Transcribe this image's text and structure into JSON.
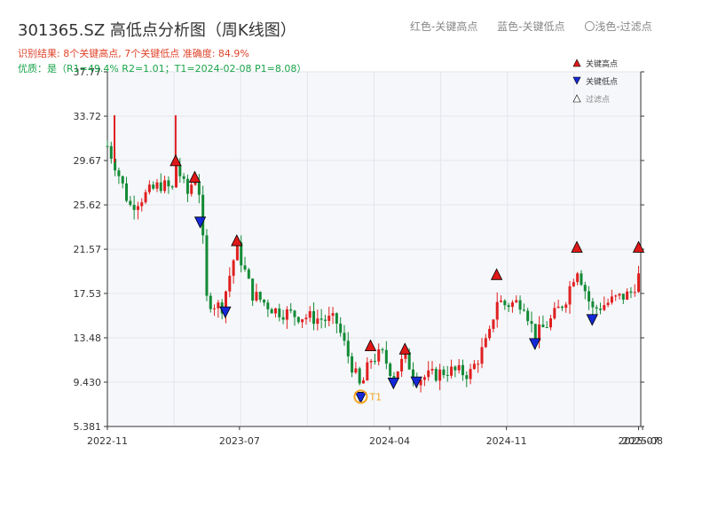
{
  "header": {
    "title": "301365.SZ 高低点分析图（周K线图）",
    "legend_red": "红色-关键高点",
    "legend_blue": "蓝色-关键低点",
    "legend_light": "〇浅色-过滤点",
    "result_line": "识别结果: 8个关键高点, 7个关键低点   准确度: 84.9%",
    "quality_line": "优质：是（R1=49.4%  R2=1.01；T1=2024-02-08 P1=8.08）"
  },
  "colors": {
    "up": "#e02020",
    "down": "#138a36",
    "high_marker": "#e01818",
    "low_marker": "#1428d8",
    "t1_marker": "#f5a623",
    "plot_bg": "#f5f7fa",
    "grid": "#e3e6ec"
  },
  "chart_data": {
    "type": "candlestick",
    "title": "301365.SZ 高低点分析图（周K线图）",
    "y_ticks": [
      "37.77",
      "33.72",
      "29.67",
      "25.62",
      "21.57",
      "17.53",
      "13.48",
      "9.430",
      "5.381"
    ],
    "ylim": [
      5.381,
      37.77
    ],
    "x_ticks": [
      {
        "label": "2022-11",
        "date": "2022-11-01"
      },
      {
        "label": "2023-07",
        "date": "2023-07-01"
      },
      {
        "label": "2024-04",
        "date": "2024-04-01"
      },
      {
        "label": "2024-11",
        "date": "2024-11-01"
      },
      {
        "label": "2025-07",
        "date": "2025-07-01"
      },
      {
        "label": "2025-08",
        "date": "2025-08-01"
      }
    ],
    "xlim": [
      "2022-11-01",
      "2025-07-05"
    ],
    "series_legend": [
      "关键高点",
      "关键低点",
      "过滤点"
    ],
    "price_path": [
      {
        "date": "2022-11-01",
        "price": 31.0
      },
      {
        "date": "2022-11-14",
        "price": 29.5
      },
      {
        "date": "2022-12-12",
        "price": 25.5
      },
      {
        "date": "2023-01-09",
        "price": 26.5
      },
      {
        "date": "2023-02-06",
        "price": 27.5
      },
      {
        "date": "2023-02-28",
        "price": 27.0
      },
      {
        "date": "2023-03-06",
        "price": 29.5
      },
      {
        "date": "2023-03-27",
        "price": 26.5
      },
      {
        "date": "2023-04-10",
        "price": 28.3
      },
      {
        "date": "2023-04-20",
        "price": 26.5
      },
      {
        "date": "2023-05-01",
        "price": 17.0
      },
      {
        "date": "2023-05-29",
        "price": 16.2
      },
      {
        "date": "2023-06-26",
        "price": 21.8
      },
      {
        "date": "2023-07-24",
        "price": 17.5
      },
      {
        "date": "2023-09-04",
        "price": 16.0
      },
      {
        "date": "2023-10-16",
        "price": 15.5
      },
      {
        "date": "2023-12-25",
        "price": 15.0
      },
      {
        "date": "2024-01-15",
        "price": 12.0
      },
      {
        "date": "2024-02-08",
        "price": 8.8
      },
      {
        "date": "2024-02-26",
        "price": 11.5
      },
      {
        "date": "2024-03-18",
        "price": 12.0
      },
      {
        "date": "2024-04-08",
        "price": 10.0
      },
      {
        "date": "2024-04-29",
        "price": 11.7
      },
      {
        "date": "2024-05-20",
        "price": 9.8
      },
      {
        "date": "2024-06-17",
        "price": 10.0
      },
      {
        "date": "2024-07-15",
        "price": 10.5
      },
      {
        "date": "2024-08-26",
        "price": 10.2
      },
      {
        "date": "2024-09-30",
        "price": 13.5
      },
      {
        "date": "2024-10-14",
        "price": 17.0
      },
      {
        "date": "2024-10-28",
        "price": 16.5
      },
      {
        "date": "2024-12-02",
        "price": 16.8
      },
      {
        "date": "2024-12-23",
        "price": 13.6
      },
      {
        "date": "2025-01-20",
        "price": 15.0
      },
      {
        "date": "2025-02-17",
        "price": 17.0
      },
      {
        "date": "2025-03-10",
        "price": 20.0
      },
      {
        "date": "2025-04-07",
        "price": 16.0
      },
      {
        "date": "2025-05-19",
        "price": 17.0
      },
      {
        "date": "2025-06-16",
        "price": 17.5
      },
      {
        "date": "2025-07-05",
        "price": 19.5
      }
    ],
    "spikes": [
      {
        "date": "2022-11-14",
        "high": 33.8
      },
      {
        "date": "2023-03-06",
        "high": 33.8
      }
    ],
    "key_highs": [
      {
        "date": "2023-03-06",
        "price": 29.6
      },
      {
        "date": "2023-04-10",
        "price": 28.1
      },
      {
        "date": "2023-06-26",
        "price": 22.3
      },
      {
        "date": "2024-02-26",
        "price": 12.7
      },
      {
        "date": "2024-04-29",
        "price": 12.4
      },
      {
        "date": "2024-10-14",
        "price": 19.2
      },
      {
        "date": "2025-03-10",
        "price": 21.7
      },
      {
        "date": "2025-07-01",
        "price": 21.7
      }
    ],
    "key_lows": [
      {
        "date": "2023-04-20",
        "price": 24.1
      },
      {
        "date": "2023-06-05",
        "price": 15.9
      },
      {
        "date": "2024-02-08",
        "price": 8.1
      },
      {
        "date": "2024-04-08",
        "price": 9.4
      },
      {
        "date": "2024-05-20",
        "price": 9.5
      },
      {
        "date": "2024-12-23",
        "price": 13.0
      },
      {
        "date": "2025-04-07",
        "price": 15.2
      }
    ],
    "t1": {
      "label": "T1",
      "date": "2024-02-08",
      "price": 8.1
    }
  }
}
